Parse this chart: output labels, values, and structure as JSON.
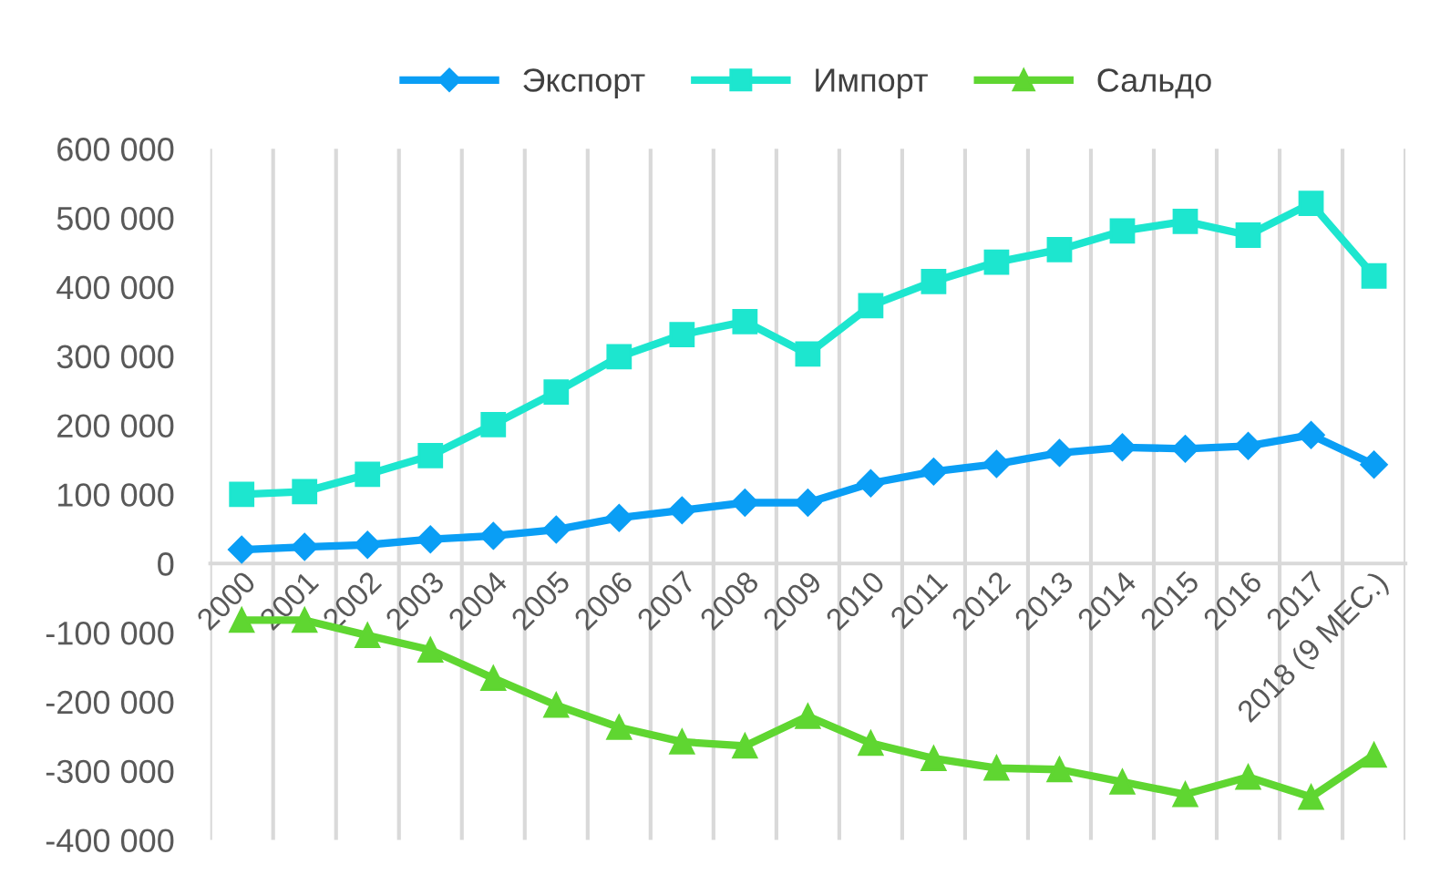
{
  "chart_data": {
    "type": "line",
    "categories": [
      "2000",
      "2001",
      "2002",
      "2003",
      "2004",
      "2005",
      "2006",
      "2007",
      "2008",
      "2009",
      "2010",
      "2011",
      "2012",
      "2013",
      "2014",
      "2015",
      "2016",
      "2017",
      "2018 (9 МЕС.)"
    ],
    "series": [
      {
        "name": "Экспорт",
        "color": "#0a9ef5",
        "marker": "diamond",
        "values": [
          20000,
          24000,
          27000,
          35000,
          40000,
          49000,
          66000,
          77000,
          88000,
          88000,
          116000,
          133000,
          144000,
          160000,
          168000,
          166000,
          170000,
          186000,
          143000
        ]
      },
      {
        "name": "Импорт",
        "color": "#1de6cf",
        "marker": "square",
        "values": [
          100000,
          104000,
          129000,
          156000,
          201000,
          248000,
          299000,
          331000,
          350000,
          303000,
          373000,
          408000,
          436000,
          454000,
          481000,
          495000,
          475000,
          521000,
          416000
        ]
      },
      {
        "name": "Сальдо",
        "color": "#5fd631",
        "marker": "triangle",
        "values": [
          -82000,
          -82000,
          -104000,
          -125000,
          -166000,
          -205000,
          -237000,
          -258000,
          -264000,
          -221000,
          -260000,
          -282000,
          -296000,
          -298000,
          -316000,
          -334000,
          -309000,
          -338000,
          -277000
        ]
      }
    ],
    "ylim": [
      -400000,
      600000
    ],
    "yticks": [
      {
        "value": -400000,
        "label": "-400 000"
      },
      {
        "value": -300000,
        "label": "-300 000"
      },
      {
        "value": -200000,
        "label": "-200 000"
      },
      {
        "value": -100000,
        "label": "-100 000"
      },
      0,
      {
        "value": 100000,
        "label": "100 000"
      },
      {
        "value": 200000,
        "label": "200 000"
      },
      {
        "value": 300000,
        "label": "300 000"
      },
      {
        "value": 400000,
        "label": "400 000"
      },
      {
        "value": 500000,
        "label": "500 000"
      },
      {
        "value": 600000,
        "label": "600 000"
      }
    ],
    "grid": "x",
    "legend": "top",
    "line_style": "solid"
  }
}
